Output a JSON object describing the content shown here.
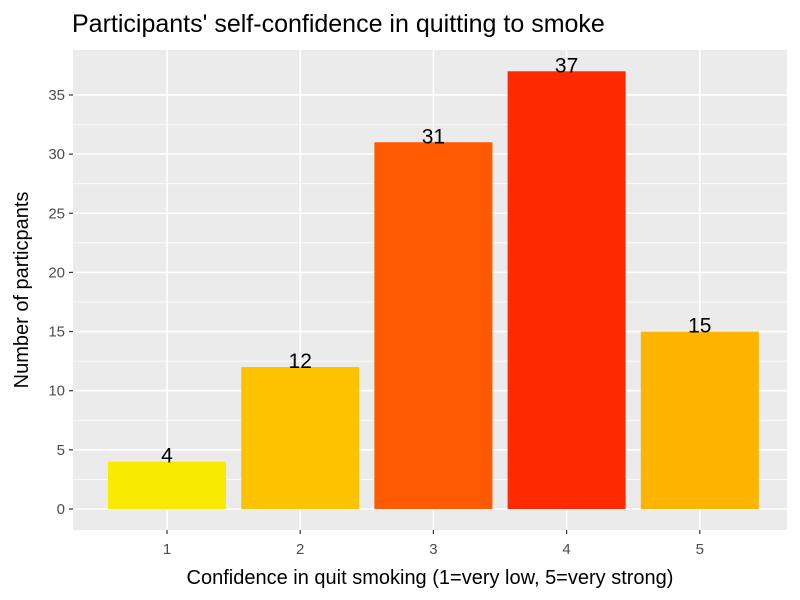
{
  "chart_data": {
    "type": "bar",
    "title": "Participants' self-confidence in quitting to smoke",
    "xlabel": "Confidence in  quit smoking (1=very low, 5=very strong)",
    "ylabel": "Number of particpants",
    "categories": [
      "1",
      "2",
      "3",
      "4",
      "5"
    ],
    "values": [
      4,
      12,
      31,
      37,
      15
    ],
    "data_labels": [
      "4",
      "12",
      "31",
      "37",
      "15"
    ],
    "ylim": [
      0,
      38.85
    ],
    "y_ticks": [
      0,
      5,
      10,
      15,
      20,
      25,
      30,
      35
    ],
    "y_tick_labels": [
      "0",
      "5",
      "10",
      "15",
      "20",
      "25",
      "30",
      "35"
    ],
    "bar_colors": [
      "#F8EA00",
      "#FFC200",
      "#FF5A00",
      "#FF2A00",
      "#FFB400"
    ],
    "panel_background": "#EBEBEB",
    "grid_color": "#FFFFFF",
    "grid": true,
    "legend": "none"
  }
}
